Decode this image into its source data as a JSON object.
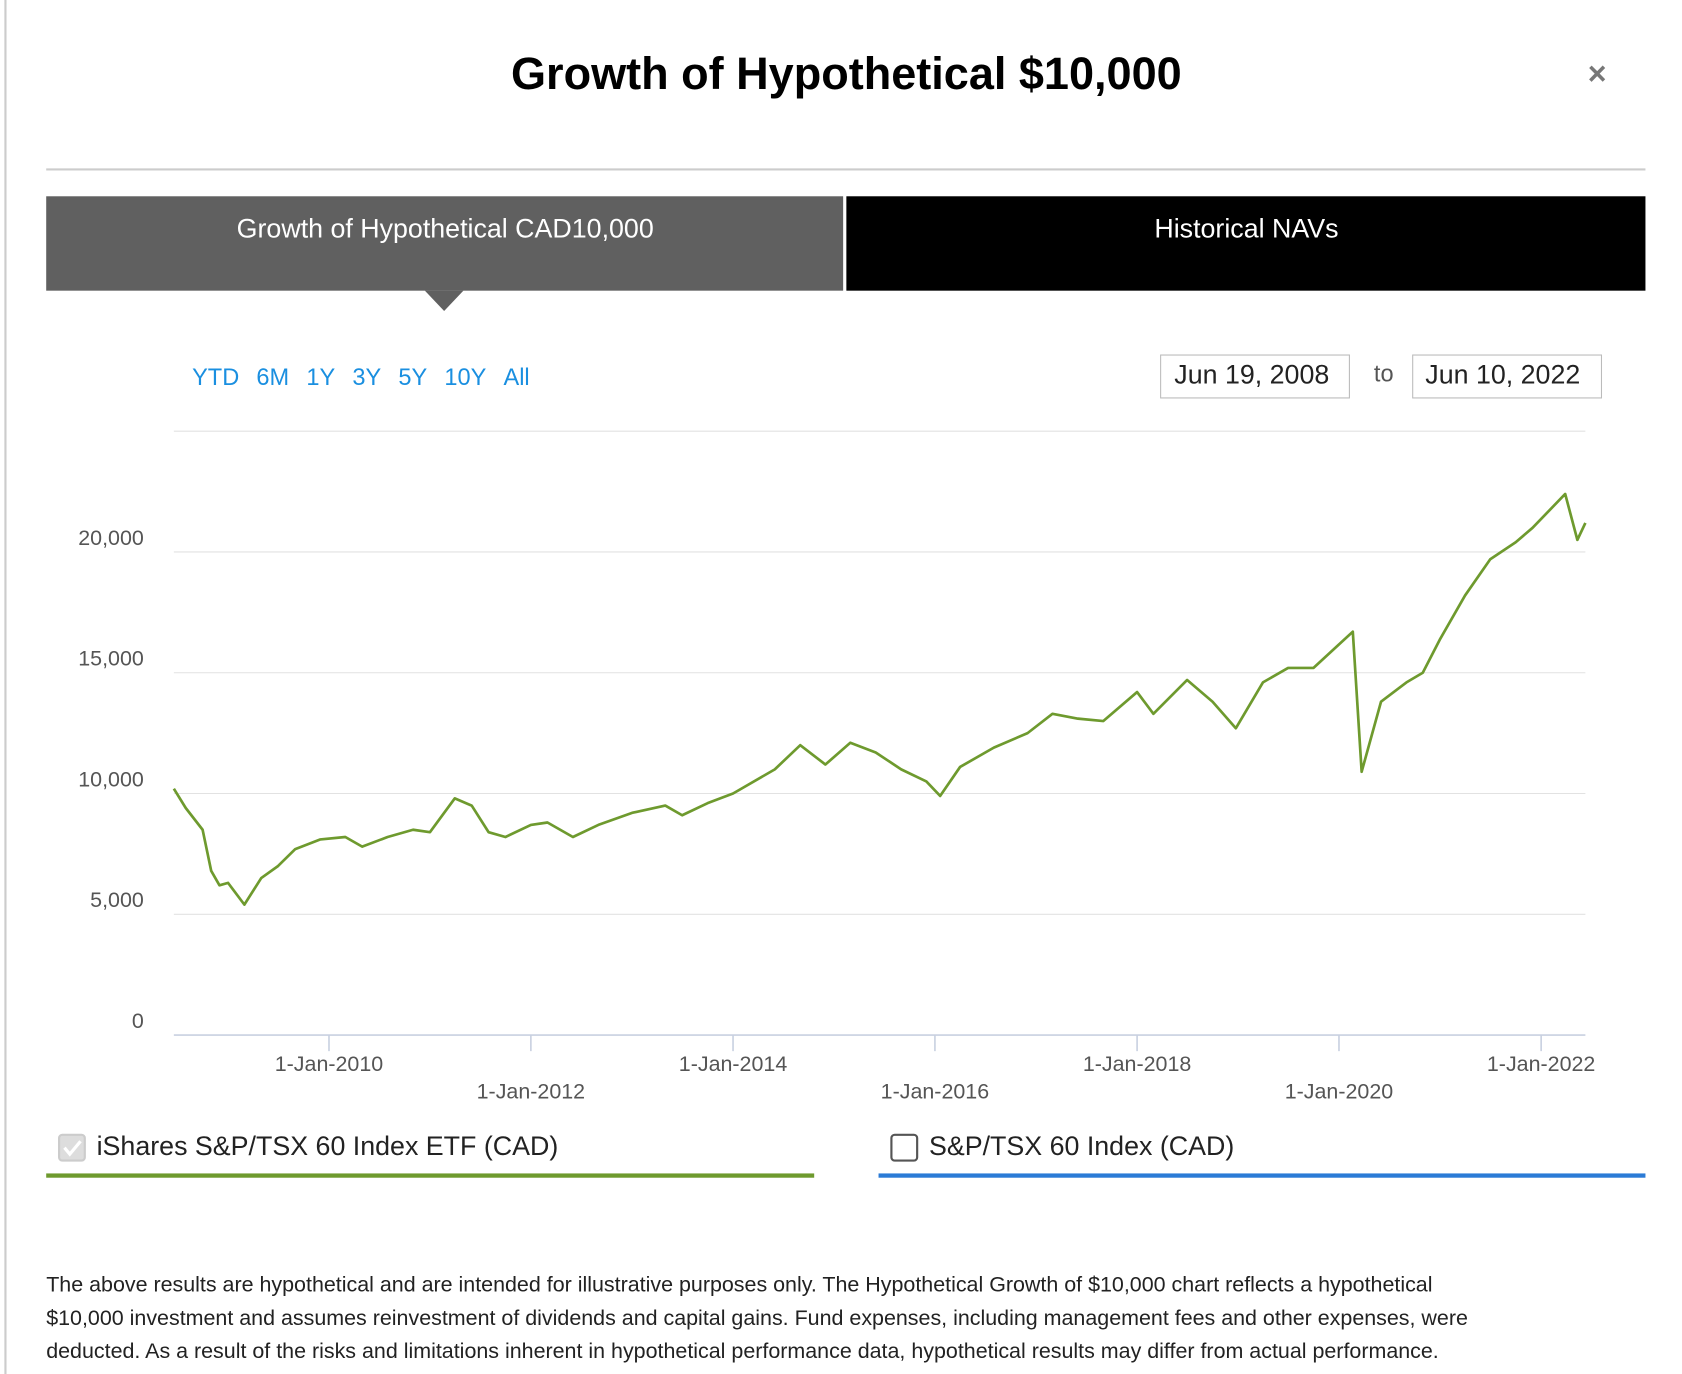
{
  "header": {
    "title": "Growth of Hypothetical $10,000",
    "close": "×"
  },
  "tabs": [
    "Growth of Hypothetical CAD10,000",
    "Historical NAVs"
  ],
  "ranges": [
    "YTD",
    "6M",
    "1Y",
    "3Y",
    "5Y",
    "10Y",
    "All"
  ],
  "date_range": {
    "from": "Jun 19, 2008",
    "separator": "to",
    "to": "Jun 10, 2022"
  },
  "chart_data": {
    "type": "line",
    "x": [
      "2008-06-19",
      "2008-08-01",
      "2008-10-01",
      "2008-11-01",
      "2008-12-01",
      "2009-01-01",
      "2009-03-01",
      "2009-05-01",
      "2009-07-01",
      "2009-09-01",
      "2009-12-01",
      "2010-03-01",
      "2010-05-01",
      "2010-08-01",
      "2010-11-01",
      "2011-01-01",
      "2011-04-01",
      "2011-06-01",
      "2011-08-01",
      "2011-10-01",
      "2012-01-01",
      "2012-03-01",
      "2012-06-01",
      "2012-09-01",
      "2013-01-01",
      "2013-05-01",
      "2013-07-01",
      "2013-10-01",
      "2014-01-01",
      "2014-06-01",
      "2014-09-01",
      "2014-12-01",
      "2015-03-01",
      "2015-06-01",
      "2015-09-01",
      "2015-12-01",
      "2016-01-20",
      "2016-04-01",
      "2016-08-01",
      "2016-12-01",
      "2017-03-01",
      "2017-06-01",
      "2017-09-01",
      "2018-01-01",
      "2018-03-01",
      "2018-07-01",
      "2018-10-01",
      "2018-12-24",
      "2019-04-01",
      "2019-07-01",
      "2019-10-01",
      "2020-02-20",
      "2020-03-23",
      "2020-06-01",
      "2020-09-01",
      "2020-10-30",
      "2021-01-01",
      "2021-04-01",
      "2021-07-01",
      "2021-10-01",
      "2021-12-01",
      "2022-03-29",
      "2022-05-12",
      "2022-06-10"
    ],
    "series": [
      {
        "name": "iShares S&P/TSX 60 Index ETF (CAD)",
        "color": "#6e9a2e",
        "checked": true,
        "values": [
          10200,
          9400,
          8500,
          6800,
          6200,
          6300,
          5400,
          6500,
          7000,
          7700,
          8100,
          8200,
          7800,
          8200,
          8500,
          8400,
          9800,
          9500,
          8400,
          8200,
          8700,
          8800,
          8200,
          8700,
          9200,
          9500,
          9100,
          9600,
          10000,
          11000,
          12000,
          11200,
          12100,
          11700,
          11000,
          10500,
          9900,
          11100,
          11900,
          12500,
          13300,
          13100,
          13000,
          14200,
          13300,
          14700,
          13800,
          12700,
          14600,
          15200,
          15200,
          16700,
          10900,
          13800,
          14600,
          15000,
          16400,
          18200,
          19700,
          20400,
          21000,
          22400,
          20500,
          21200
        ]
      }
    ],
    "benchmark": {
      "name": "S&P/TSX 60 Index (CAD)",
      "color": "#2b7bd6",
      "checked": false
    },
    "xlim": [
      "2008-06-19",
      "2022-06-10"
    ],
    "xticks": [
      {
        "value": "2010-01-01",
        "label": "1-Jan-2010"
      },
      {
        "value": "2012-01-01",
        "label": "1-Jan-2012"
      },
      {
        "value": "2014-01-01",
        "label": "1-Jan-2014"
      },
      {
        "value": "2016-01-01",
        "label": "1-Jan-2016"
      },
      {
        "value": "2018-01-01",
        "label": "1-Jan-2018"
      },
      {
        "value": "2020-01-01",
        "label": "1-Jan-2020"
      },
      {
        "value": "2022-01-01",
        "label": "1-Jan-2022"
      }
    ],
    "ylim": [
      0,
      25000
    ],
    "yticks": [
      0,
      {
        "value": 5000,
        "label": "5,000"
      },
      {
        "value": 10000,
        "label": "10,000"
      },
      {
        "value": 15000,
        "label": "15,000"
      },
      {
        "value": 20000,
        "label": "20,000"
      }
    ],
    "grid": true
  },
  "disclaimer": [
    "The above results are hypothetical and are intended for illustrative purposes only. The Hypothetical Growth of $10,000 chart reflects a hypothetical",
    "$10,000 investment and assumes reinvestment of dividends and capital gains. Fund expenses, including management fees and other expenses, were",
    "deducted. As a result of the risks and limitations inherent in hypothetical performance data, hypothetical results may differ from actual performance."
  ]
}
